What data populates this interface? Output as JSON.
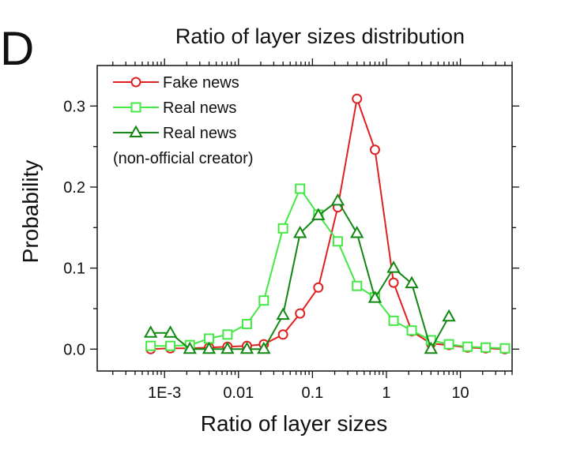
{
  "panel_label": "D",
  "colors": {
    "fake": "#e02020",
    "real": "#44e844",
    "real_nonofficial": "#118811"
  },
  "legend_note": "(non-official creator)",
  "chart_data": {
    "type": "line",
    "title": "Ratio of layer sizes distribution",
    "xlabel": "Ratio of layer sizes",
    "ylabel": "Probability",
    "xscale": "log",
    "xlim": [
      0.000123,
      50
    ],
    "ylim": [
      -0.027,
      0.35
    ],
    "xticks": [
      {
        "value": 0.001,
        "label": "1E-3"
      },
      {
        "value": 0.01,
        "label": "0.01"
      },
      {
        "value": 0.1,
        "label": "0.1"
      },
      {
        "value": 1,
        "label": "1"
      },
      {
        "value": 10,
        "label": "10"
      }
    ],
    "yticks": [
      {
        "value": 0.0,
        "label": "0.0"
      },
      {
        "value": 0.1,
        "label": "0.1"
      },
      {
        "value": 0.2,
        "label": "0.2"
      },
      {
        "value": 0.3,
        "label": "0.3"
      }
    ],
    "legend_position": "top-left",
    "series": [
      {
        "name": "Fake news",
        "marker": "circle",
        "color": "#e02020",
        "points": [
          [
            0.00065,
            0.0
          ],
          [
            0.0012,
            0.001
          ],
          [
            0.0022,
            0.001
          ],
          [
            0.004,
            0.002
          ],
          [
            0.0071,
            0.003
          ],
          [
            0.013,
            0.004
          ],
          [
            0.022,
            0.006
          ],
          [
            0.04,
            0.018
          ],
          [
            0.068,
            0.044
          ],
          [
            0.12,
            0.076
          ],
          [
            0.22,
            0.175
          ],
          [
            0.4,
            0.309
          ],
          [
            0.7,
            0.246
          ],
          [
            1.25,
            0.082
          ],
          [
            2.2,
            0.022
          ],
          [
            4.0,
            0.007
          ],
          [
            7.0,
            0.005
          ],
          [
            12.5,
            0.002
          ],
          [
            22,
            0.001
          ],
          [
            40,
            0.0
          ]
        ]
      },
      {
        "name": "Real news",
        "marker": "square",
        "color": "#44e844",
        "points": [
          [
            0.00065,
            0.004
          ],
          [
            0.0012,
            0.004
          ],
          [
            0.0022,
            0.005
          ],
          [
            0.004,
            0.013
          ],
          [
            0.0071,
            0.018
          ],
          [
            0.013,
            0.031
          ],
          [
            0.022,
            0.06
          ],
          [
            0.04,
            0.149
          ],
          [
            0.068,
            0.198
          ],
          [
            0.12,
            0.166
          ],
          [
            0.22,
            0.133
          ],
          [
            0.4,
            0.078
          ],
          [
            0.7,
            0.064
          ],
          [
            1.25,
            0.035
          ],
          [
            2.2,
            0.023
          ],
          [
            4.0,
            0.011
          ],
          [
            7.0,
            0.006
          ],
          [
            12.5,
            0.003
          ],
          [
            22,
            0.002
          ],
          [
            40,
            0.001
          ]
        ]
      },
      {
        "name": "Real news",
        "marker": "triangle",
        "color": "#118811",
        "points": [
          [
            0.00065,
            0.02
          ],
          [
            0.0012,
            0.02
          ],
          [
            0.0022,
            0.0
          ],
          [
            0.004,
            0.0
          ],
          [
            0.0071,
            0.0
          ],
          [
            0.013,
            0.0
          ],
          [
            0.022,
            0.0
          ],
          [
            0.04,
            0.042
          ],
          [
            0.068,
            0.143
          ],
          [
            0.12,
            0.165
          ],
          [
            0.22,
            0.183
          ],
          [
            0.4,
            0.143
          ],
          [
            0.7,
            0.063
          ],
          [
            1.25,
            0.1
          ],
          [
            2.2,
            0.081
          ],
          [
            4.0,
            0.0
          ],
          [
            7.0,
            0.04
          ]
        ]
      }
    ]
  }
}
